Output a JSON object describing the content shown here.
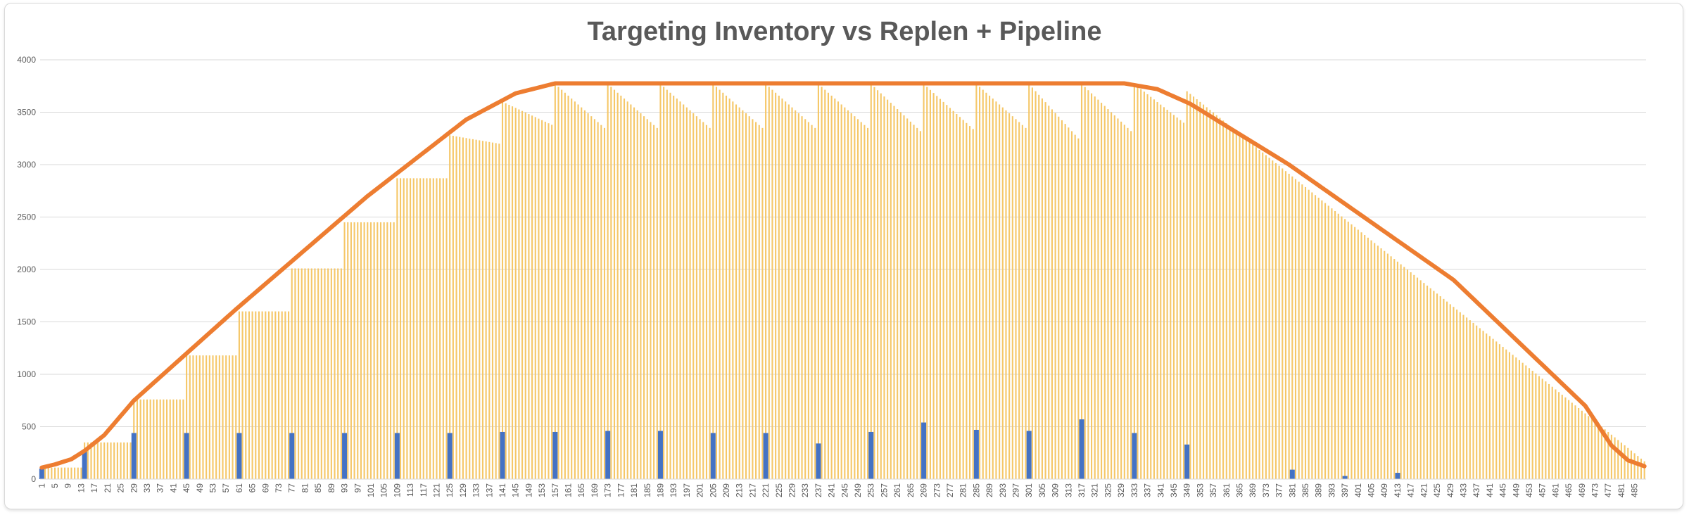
{
  "chart_data": {
    "type": "bar",
    "title": "Targeting Inventory vs Replen + Pipeline",
    "xlabel": "",
    "ylabel": "",
    "x_range": [
      1,
      488
    ],
    "x_tick_step": 4,
    "ylim": [
      0,
      4000
    ],
    "y_ticks": [
      0,
      500,
      1000,
      1500,
      2000,
      2500,
      3000,
      3500,
      4000
    ],
    "grid": "horizontal",
    "legend": "none",
    "colors": {
      "inventory": "#f5c768",
      "replen": "#4472c4",
      "target": "#ed7d31",
      "grid": "#d9d9d9",
      "text": "#595959"
    },
    "series": [
      {
        "type": "bar",
        "role": "replen",
        "points": [
          [
            1,
            100
          ],
          [
            14,
            280
          ],
          [
            29,
            440
          ],
          [
            45,
            440
          ],
          [
            61,
            440
          ],
          [
            77,
            440
          ],
          [
            93,
            440
          ],
          [
            109,
            440
          ],
          [
            125,
            440
          ],
          [
            141,
            450
          ],
          [
            157,
            450
          ],
          [
            173,
            460
          ],
          [
            189,
            460
          ],
          [
            205,
            440
          ],
          [
            221,
            440
          ],
          [
            237,
            340
          ],
          [
            253,
            450
          ],
          [
            269,
            540
          ],
          [
            285,
            470
          ],
          [
            301,
            460
          ],
          [
            317,
            570
          ],
          [
            333,
            440
          ],
          [
            349,
            330
          ],
          [
            381,
            90
          ],
          [
            397,
            30
          ],
          [
            413,
            60
          ]
        ]
      },
      {
        "type": "bar",
        "role": "inventory",
        "sawtooth_points": [
          [
            1,
            110
          ],
          [
            13,
            110
          ],
          [
            14,
            350
          ],
          [
            28,
            350
          ],
          [
            29,
            760
          ],
          [
            44,
            760
          ],
          [
            45,
            1180
          ],
          [
            60,
            1180
          ],
          [
            61,
            1600
          ],
          [
            76,
            1600
          ],
          [
            77,
            2010
          ],
          [
            92,
            2010
          ],
          [
            93,
            2450
          ],
          [
            108,
            2450
          ],
          [
            109,
            2870
          ],
          [
            124,
            2870
          ],
          [
            125,
            3280
          ],
          [
            140,
            3200
          ],
          [
            141,
            3600
          ],
          [
            156,
            3380
          ],
          [
            157,
            3770
          ],
          [
            172,
            3350
          ],
          [
            173,
            3770
          ],
          [
            188,
            3350
          ],
          [
            189,
            3770
          ],
          [
            204,
            3350
          ],
          [
            205,
            3770
          ],
          [
            220,
            3350
          ],
          [
            221,
            3770
          ],
          [
            236,
            3350
          ],
          [
            237,
            3770
          ],
          [
            252,
            3350
          ],
          [
            253,
            3770
          ],
          [
            268,
            3320
          ],
          [
            269,
            3770
          ],
          [
            284,
            3340
          ],
          [
            285,
            3770
          ],
          [
            300,
            3350
          ],
          [
            301,
            3770
          ],
          [
            316,
            3250
          ],
          [
            317,
            3770
          ],
          [
            332,
            3320
          ],
          [
            333,
            3770
          ],
          [
            348,
            3400
          ],
          [
            349,
            3700
          ],
          [
            488,
            170
          ]
        ]
      },
      {
        "type": "line",
        "role": "target",
        "points": [
          [
            1,
            110
          ],
          [
            5,
            140
          ],
          [
            10,
            190
          ],
          [
            14,
            270
          ],
          [
            20,
            420
          ],
          [
            29,
            750
          ],
          [
            60,
            1620
          ],
          [
            100,
            2700
          ],
          [
            130,
            3430
          ],
          [
            145,
            3680
          ],
          [
            157,
            3775
          ],
          [
            330,
            3775
          ],
          [
            340,
            3720
          ],
          [
            350,
            3580
          ],
          [
            380,
            3000
          ],
          [
            430,
            1900
          ],
          [
            470,
            700
          ],
          [
            478,
            320
          ],
          [
            483,
            180
          ],
          [
            490,
            100
          ],
          [
            500,
            50
          ],
          [
            510,
            20
          ]
        ]
      }
    ]
  }
}
